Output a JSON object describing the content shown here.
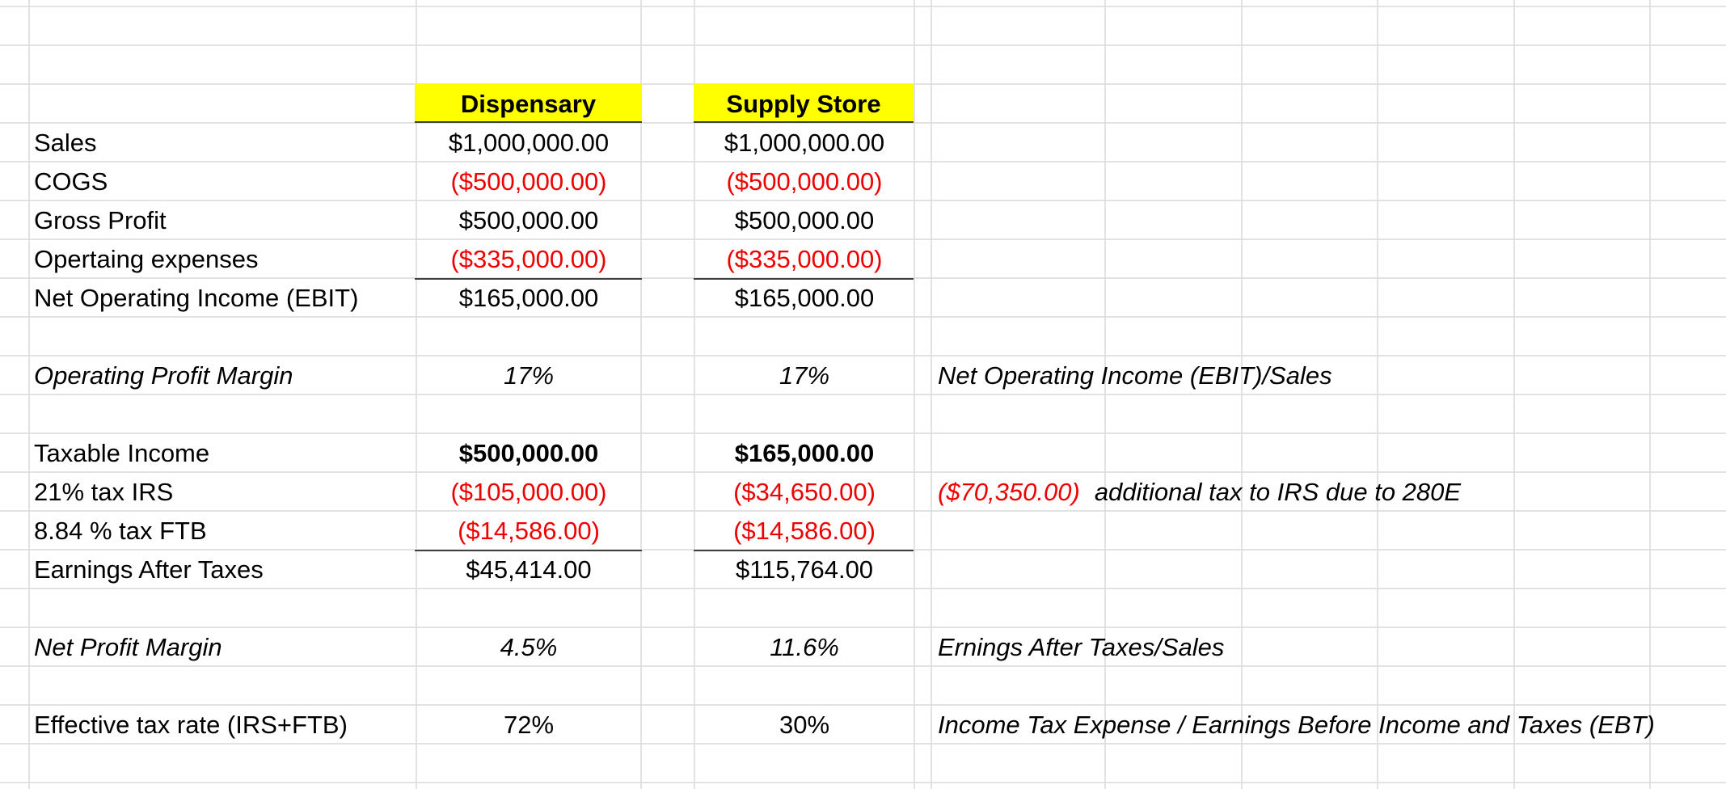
{
  "columns": {
    "dispensary": "Dispensary",
    "supply_store": "Supply Store"
  },
  "income_statement": [
    {
      "label": "Sales",
      "dispensary": "$1,000,000.00",
      "supply_store": "$1,000,000.00"
    },
    {
      "label": "COGS",
      "dispensary": "($500,000.00)",
      "supply_store": "($500,000.00)"
    },
    {
      "label": "Gross Profit",
      "dispensary": "$500,000.00",
      "supply_store": "$500,000.00"
    },
    {
      "label": "Opertaing expenses",
      "dispensary": "($335,000.00)",
      "supply_store": "($335,000.00)"
    },
    {
      "label": "Net Operating Income (EBIT)",
      "dispensary": "$165,000.00",
      "supply_store": "$165,000.00"
    }
  ],
  "operating_margin": {
    "label": "Operating Profit Margin",
    "dispensary": "17%",
    "supply_store": "17%",
    "note": "Net Operating Income (EBIT)/Sales"
  },
  "tax_section": [
    {
      "label": "Taxable Income",
      "dispensary": "$500,000.00",
      "supply_store": "$165,000.00"
    },
    {
      "label": "21% tax IRS",
      "dispensary": "($105,000.00)",
      "supply_store": "($34,650.00)",
      "note_amount": "($70,350.00)",
      "note_text": "additional tax to IRS due to 280E"
    },
    {
      "label": "8.84 % tax FTB",
      "dispensary": "($14,586.00)",
      "supply_store": "($14,586.00)"
    },
    {
      "label": "Earnings After Taxes",
      "dispensary": "$45,414.00",
      "supply_store": "$115,764.00"
    }
  ],
  "net_margin": {
    "label": "Net Profit Margin",
    "dispensary": "4.5%",
    "supply_store": "11.6%",
    "note": "Ernings After Taxes/Sales"
  },
  "effective_tax": {
    "label": "Effective tax rate (IRS+FTB)",
    "dispensary": "72%",
    "supply_store": "30%",
    "note": "Income Tax Expense / Earnings Before Income and Taxes (EBT)"
  },
  "colors": {
    "header_fill": "#ffff00",
    "negative": "#ee0000",
    "gridline": "#d9d9d9"
  }
}
